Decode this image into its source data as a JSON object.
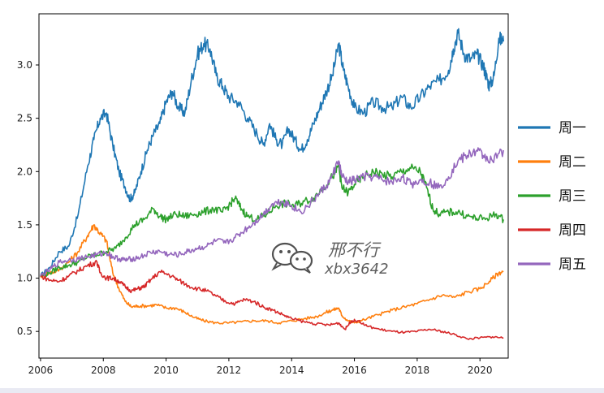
{
  "chart_data": {
    "type": "line",
    "title": "",
    "xlabel": "",
    "ylabel": "",
    "xlim": [
      2005.95,
      2020.9
    ],
    "ylim": [
      0.25,
      3.48
    ],
    "xticks": [
      2006,
      2008,
      2010,
      2012,
      2014,
      2016,
      2018,
      2020
    ],
    "yticks": [
      0.5,
      1.0,
      1.5,
      2.0,
      2.5,
      3.0
    ],
    "grid": false,
    "legend": "right",
    "series": [
      {
        "name": "周一",
        "color": "#1f77b4",
        "points": [
          [
            2006.0,
            1.02
          ],
          [
            2006.3,
            1.1
          ],
          [
            2006.6,
            1.25
          ],
          [
            2006.9,
            1.3
          ],
          [
            2007.2,
            1.6
          ],
          [
            2007.5,
            2.05
          ],
          [
            2007.7,
            2.3
          ],
          [
            2007.9,
            2.5
          ],
          [
            2008.1,
            2.55
          ],
          [
            2008.3,
            2.25
          ],
          [
            2008.5,
            2.0
          ],
          [
            2008.7,
            1.85
          ],
          [
            2008.85,
            1.74
          ],
          [
            2009.0,
            1.8
          ],
          [
            2009.2,
            2.0
          ],
          [
            2009.4,
            2.2
          ],
          [
            2009.6,
            2.35
          ],
          [
            2009.8,
            2.45
          ],
          [
            2010.0,
            2.65
          ],
          [
            2010.2,
            2.75
          ],
          [
            2010.4,
            2.6
          ],
          [
            2010.6,
            2.55
          ],
          [
            2010.8,
            2.85
          ],
          [
            2011.0,
            3.1
          ],
          [
            2011.2,
            3.2
          ],
          [
            2011.4,
            3.15
          ],
          [
            2011.6,
            2.9
          ],
          [
            2011.8,
            2.8
          ],
          [
            2012.0,
            2.7
          ],
          [
            2012.3,
            2.65
          ],
          [
            2012.6,
            2.5
          ],
          [
            2012.9,
            2.35
          ],
          [
            2013.1,
            2.25
          ],
          [
            2013.3,
            2.45
          ],
          [
            2013.5,
            2.3
          ],
          [
            2013.7,
            2.25
          ],
          [
            2013.9,
            2.4
          ],
          [
            2014.1,
            2.3
          ],
          [
            2014.3,
            2.2
          ],
          [
            2014.5,
            2.3
          ],
          [
            2014.7,
            2.45
          ],
          [
            2014.9,
            2.6
          ],
          [
            2015.1,
            2.75
          ],
          [
            2015.3,
            2.9
          ],
          [
            2015.5,
            3.2
          ],
          [
            2015.65,
            2.95
          ],
          [
            2015.8,
            2.8
          ],
          [
            2016.0,
            2.6
          ],
          [
            2016.3,
            2.55
          ],
          [
            2016.6,
            2.65
          ],
          [
            2016.9,
            2.6
          ],
          [
            2017.2,
            2.6
          ],
          [
            2017.5,
            2.7
          ],
          [
            2017.8,
            2.6
          ],
          [
            2018.1,
            2.7
          ],
          [
            2018.4,
            2.8
          ],
          [
            2018.7,
            2.85
          ],
          [
            2019.0,
            2.95
          ],
          [
            2019.15,
            3.15
          ],
          [
            2019.3,
            3.3
          ],
          [
            2019.5,
            3.1
          ],
          [
            2019.7,
            3.05
          ],
          [
            2019.9,
            3.1
          ],
          [
            2020.1,
            3.0
          ],
          [
            2020.2,
            2.9
          ],
          [
            2020.3,
            2.8
          ],
          [
            2020.45,
            2.9
          ],
          [
            2020.6,
            3.25
          ],
          [
            2020.75,
            3.22
          ]
        ]
      },
      {
        "name": "周二",
        "color": "#ff7f0e",
        "points": [
          [
            2006.0,
            1.02
          ],
          [
            2006.3,
            1.05
          ],
          [
            2006.6,
            1.08
          ],
          [
            2006.9,
            1.15
          ],
          [
            2007.2,
            1.25
          ],
          [
            2007.5,
            1.4
          ],
          [
            2007.7,
            1.5
          ],
          [
            2007.9,
            1.42
          ],
          [
            2008.1,
            1.35
          ],
          [
            2008.3,
            1.05
          ],
          [
            2008.5,
            0.9
          ],
          [
            2008.7,
            0.78
          ],
          [
            2008.9,
            0.73
          ],
          [
            2009.1,
            0.74
          ],
          [
            2009.4,
            0.74
          ],
          [
            2009.7,
            0.75
          ],
          [
            2010.0,
            0.72
          ],
          [
            2010.3,
            0.72
          ],
          [
            2010.6,
            0.68
          ],
          [
            2010.9,
            0.63
          ],
          [
            2011.2,
            0.6
          ],
          [
            2011.6,
            0.58
          ],
          [
            2012.0,
            0.58
          ],
          [
            2012.4,
            0.59
          ],
          [
            2012.8,
            0.6
          ],
          [
            2013.2,
            0.6
          ],
          [
            2013.6,
            0.58
          ],
          [
            2014.0,
            0.6
          ],
          [
            2014.4,
            0.62
          ],
          [
            2014.8,
            0.64
          ],
          [
            2015.1,
            0.68
          ],
          [
            2015.3,
            0.7
          ],
          [
            2015.5,
            0.72
          ],
          [
            2015.6,
            0.65
          ],
          [
            2015.8,
            0.6
          ],
          [
            2016.0,
            0.58
          ],
          [
            2016.4,
            0.62
          ],
          [
            2016.8,
            0.66
          ],
          [
            2017.2,
            0.7
          ],
          [
            2017.6,
            0.73
          ],
          [
            2018.0,
            0.76
          ],
          [
            2018.4,
            0.8
          ],
          [
            2018.8,
            0.84
          ],
          [
            2019.2,
            0.82
          ],
          [
            2019.6,
            0.87
          ],
          [
            2020.0,
            0.9
          ],
          [
            2020.3,
            0.97
          ],
          [
            2020.6,
            1.05
          ],
          [
            2020.75,
            1.06
          ]
        ]
      },
      {
        "name": "周三",
        "color": "#2ca02c",
        "points": [
          [
            2006.0,
            1.02
          ],
          [
            2006.3,
            1.05
          ],
          [
            2006.6,
            1.1
          ],
          [
            2006.9,
            1.12
          ],
          [
            2007.2,
            1.15
          ],
          [
            2007.5,
            1.2
          ],
          [
            2007.8,
            1.22
          ],
          [
            2008.1,
            1.25
          ],
          [
            2008.4,
            1.28
          ],
          [
            2008.7,
            1.38
          ],
          [
            2009.0,
            1.5
          ],
          [
            2009.3,
            1.55
          ],
          [
            2009.6,
            1.65
          ],
          [
            2009.8,
            1.58
          ],
          [
            2010.0,
            1.55
          ],
          [
            2010.3,
            1.6
          ],
          [
            2010.6,
            1.58
          ],
          [
            2010.9,
            1.6
          ],
          [
            2011.2,
            1.62
          ],
          [
            2011.5,
            1.65
          ],
          [
            2011.8,
            1.62
          ],
          [
            2012.0,
            1.68
          ],
          [
            2012.2,
            1.75
          ],
          [
            2012.4,
            1.65
          ],
          [
            2012.6,
            1.58
          ],
          [
            2012.9,
            1.55
          ],
          [
            2013.2,
            1.6
          ],
          [
            2013.5,
            1.68
          ],
          [
            2013.8,
            1.7
          ],
          [
            2014.1,
            1.68
          ],
          [
            2014.4,
            1.72
          ],
          [
            2014.7,
            1.75
          ],
          [
            2015.0,
            1.85
          ],
          [
            2015.3,
            1.95
          ],
          [
            2015.5,
            2.05
          ],
          [
            2015.6,
            1.85
          ],
          [
            2015.8,
            1.8
          ],
          [
            2016.0,
            1.88
          ],
          [
            2016.3,
            1.95
          ],
          [
            2016.6,
            2.0
          ],
          [
            2016.9,
            1.97
          ],
          [
            2017.2,
            1.95
          ],
          [
            2017.5,
            2.0
          ],
          [
            2017.8,
            2.03
          ],
          [
            2018.1,
            2.0
          ],
          [
            2018.3,
            1.85
          ],
          [
            2018.5,
            1.65
          ],
          [
            2018.7,
            1.6
          ],
          [
            2019.0,
            1.62
          ],
          [
            2019.3,
            1.62
          ],
          [
            2019.6,
            1.58
          ],
          [
            2019.9,
            1.56
          ],
          [
            2020.2,
            1.56
          ],
          [
            2020.5,
            1.6
          ],
          [
            2020.75,
            1.55
          ]
        ]
      },
      {
        "name": "周四",
        "color": "#d62728",
        "points": [
          [
            2006.0,
            1.02
          ],
          [
            2006.3,
            0.98
          ],
          [
            2006.6,
            0.97
          ],
          [
            2006.9,
            1.02
          ],
          [
            2007.2,
            1.07
          ],
          [
            2007.5,
            1.12
          ],
          [
            2007.8,
            1.15
          ],
          [
            2007.9,
            1.05
          ],
          [
            2008.1,
            1.0
          ],
          [
            2008.3,
            1.0
          ],
          [
            2008.5,
            0.97
          ],
          [
            2008.7,
            0.92
          ],
          [
            2008.9,
            0.88
          ],
          [
            2009.1,
            0.9
          ],
          [
            2009.3,
            0.92
          ],
          [
            2009.5,
            0.98
          ],
          [
            2009.8,
            1.06
          ],
          [
            2010.1,
            1.03
          ],
          [
            2010.4,
            0.98
          ],
          [
            2010.7,
            0.93
          ],
          [
            2011.0,
            0.9
          ],
          [
            2011.3,
            0.88
          ],
          [
            2011.6,
            0.83
          ],
          [
            2011.9,
            0.78
          ],
          [
            2012.2,
            0.76
          ],
          [
            2012.5,
            0.8
          ],
          [
            2012.8,
            0.78
          ],
          [
            2013.1,
            0.73
          ],
          [
            2013.4,
            0.7
          ],
          [
            2013.7,
            0.66
          ],
          [
            2014.0,
            0.62
          ],
          [
            2014.4,
            0.59
          ],
          [
            2014.8,
            0.57
          ],
          [
            2015.2,
            0.56
          ],
          [
            2015.5,
            0.58
          ],
          [
            2015.7,
            0.52
          ],
          [
            2015.9,
            0.6
          ],
          [
            2016.1,
            0.6
          ],
          [
            2016.4,
            0.55
          ],
          [
            2016.8,
            0.52
          ],
          [
            2017.2,
            0.5
          ],
          [
            2017.6,
            0.49
          ],
          [
            2018.0,
            0.5
          ],
          [
            2018.4,
            0.52
          ],
          [
            2018.8,
            0.5
          ],
          [
            2019.2,
            0.47
          ],
          [
            2019.6,
            0.43
          ],
          [
            2020.0,
            0.44
          ],
          [
            2020.4,
            0.45
          ],
          [
            2020.75,
            0.44
          ]
        ]
      },
      {
        "name": "周五",
        "color": "#9467bd",
        "points": [
          [
            2006.0,
            1.02
          ],
          [
            2006.3,
            1.08
          ],
          [
            2006.6,
            1.15
          ],
          [
            2006.9,
            1.17
          ],
          [
            2007.2,
            1.18
          ],
          [
            2007.5,
            1.2
          ],
          [
            2007.8,
            1.22
          ],
          [
            2008.1,
            1.24
          ],
          [
            2008.3,
            1.2
          ],
          [
            2008.5,
            1.18
          ],
          [
            2008.7,
            1.17
          ],
          [
            2008.9,
            1.18
          ],
          [
            2009.2,
            1.2
          ],
          [
            2009.5,
            1.24
          ],
          [
            2009.8,
            1.25
          ],
          [
            2010.1,
            1.22
          ],
          [
            2010.4,
            1.22
          ],
          [
            2010.7,
            1.25
          ],
          [
            2011.0,
            1.28
          ],
          [
            2011.3,
            1.3
          ],
          [
            2011.6,
            1.35
          ],
          [
            2011.9,
            1.33
          ],
          [
            2012.2,
            1.38
          ],
          [
            2012.5,
            1.45
          ],
          [
            2012.8,
            1.52
          ],
          [
            2013.1,
            1.6
          ],
          [
            2013.4,
            1.7
          ],
          [
            2013.7,
            1.72
          ],
          [
            2014.0,
            1.68
          ],
          [
            2014.3,
            1.62
          ],
          [
            2014.6,
            1.7
          ],
          [
            2014.9,
            1.8
          ],
          [
            2015.2,
            1.9
          ],
          [
            2015.5,
            2.1
          ],
          [
            2015.6,
            1.95
          ],
          [
            2015.8,
            1.9
          ],
          [
            2016.0,
            1.92
          ],
          [
            2016.3,
            1.95
          ],
          [
            2016.6,
            1.95
          ],
          [
            2016.9,
            1.92
          ],
          [
            2017.2,
            1.9
          ],
          [
            2017.5,
            1.95
          ],
          [
            2017.8,
            1.88
          ],
          [
            2018.1,
            1.92
          ],
          [
            2018.4,
            1.9
          ],
          [
            2018.7,
            1.85
          ],
          [
            2019.0,
            1.95
          ],
          [
            2019.3,
            2.1
          ],
          [
            2019.6,
            2.15
          ],
          [
            2019.9,
            2.2
          ],
          [
            2020.1,
            2.15
          ],
          [
            2020.4,
            2.1
          ],
          [
            2020.75,
            2.2
          ]
        ]
      }
    ]
  },
  "watermark": {
    "icon": "wechat-icon",
    "line1": "邢不行",
    "line2": "xbx3642"
  }
}
